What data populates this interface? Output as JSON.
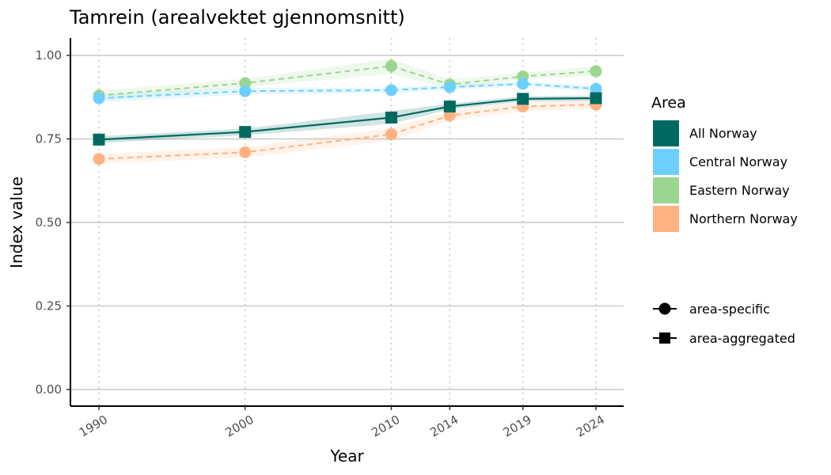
{
  "chart_data": {
    "type": "line",
    "title": "Tamrein (arealvektet gjennomsnitt)",
    "xlabel": "Year",
    "ylabel": "Index value",
    "x": [
      1990,
      2000,
      2010,
      2014,
      2019,
      2024
    ],
    "x_tick_labels": [
      "1990",
      "2000",
      "2010",
      "2014",
      "2019",
      "2024"
    ],
    "ylim": [
      0,
      1
    ],
    "y_ticks": [
      0,
      0.25,
      0.5,
      0.75,
      1
    ],
    "y_tick_labels": [
      "0.00",
      "0.25",
      "0.50",
      "0.75",
      "1.00"
    ],
    "grid": "horizontal major, vertical dotted at data years",
    "legend_area_title": "Area",
    "legend_placement": "right",
    "series": [
      {
        "name": "Eastern Norway",
        "color": "#9bd68e",
        "style": "dashed",
        "marker": "circle",
        "values": [
          0.88,
          0.917,
          0.968,
          0.913,
          0.937,
          0.953
        ],
        "lower": [
          0.865,
          0.905,
          0.945,
          0.9,
          0.928,
          0.94
        ],
        "upper": [
          0.895,
          0.93,
          0.99,
          0.928,
          0.948,
          0.968
        ]
      },
      {
        "name": "Central Norway",
        "color": "#6cd0ff",
        "style": "dashed",
        "marker": "circle",
        "values": [
          0.872,
          0.893,
          0.896,
          0.905,
          0.915,
          0.9
        ],
        "lower": [
          0.86,
          0.883,
          0.888,
          0.897,
          0.908,
          0.892
        ],
        "upper": [
          0.884,
          0.903,
          0.904,
          0.913,
          0.922,
          0.908
        ]
      },
      {
        "name": "Northern Norway",
        "color": "#ffb27f",
        "style": "dashed",
        "marker": "circle",
        "values": [
          0.69,
          0.71,
          0.764,
          0.82,
          0.847,
          0.853
        ],
        "lower": [
          0.675,
          0.695,
          0.745,
          0.805,
          0.833,
          0.84
        ],
        "upper": [
          0.705,
          0.725,
          0.783,
          0.835,
          0.861,
          0.866
        ]
      },
      {
        "name": "All Norway",
        "color": "#006a61",
        "style": "solid",
        "marker": "square",
        "values": [
          0.748,
          0.771,
          0.814,
          0.847,
          0.87,
          0.872
        ],
        "lower": [
          0.738,
          0.761,
          0.795,
          0.838,
          0.862,
          0.864
        ],
        "upper": [
          0.758,
          0.781,
          0.833,
          0.856,
          0.878,
          0.88
        ]
      }
    ],
    "legend_area": [
      {
        "label": "All Norway",
        "color": "#006a61"
      },
      {
        "label": "Central Norway",
        "color": "#6cd0ff"
      },
      {
        "label": "Eastern Norway",
        "color": "#9bd68e"
      },
      {
        "label": "Northern Norway",
        "color": "#ffb27f"
      }
    ],
    "legend_shape": [
      {
        "label": "area-specific",
        "marker": "circle"
      },
      {
        "label": "area-aggregated",
        "marker": "square"
      }
    ]
  }
}
